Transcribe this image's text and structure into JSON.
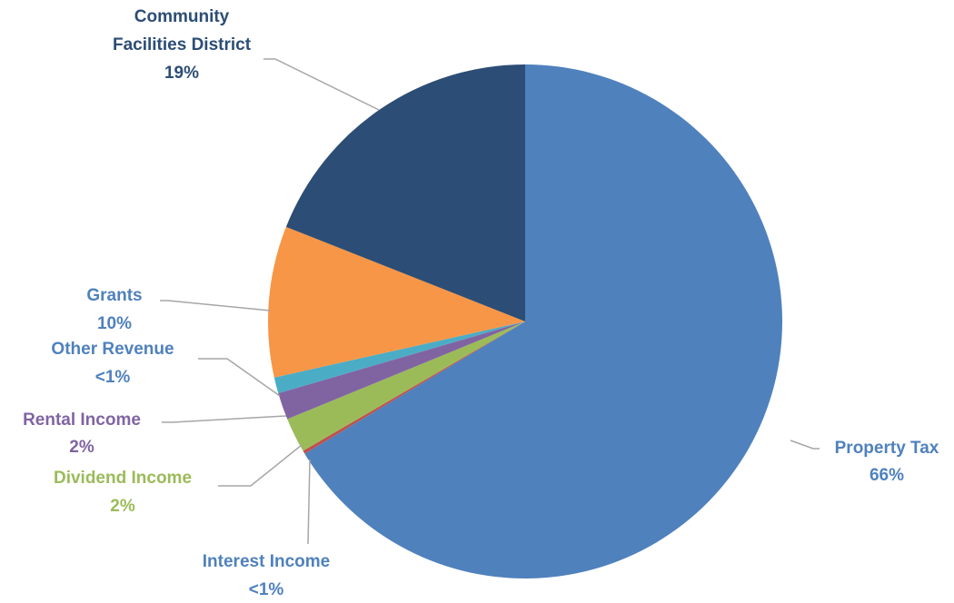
{
  "chart_data": {
    "type": "pie",
    "title": "",
    "start_angle_deg": 0,
    "direction": "clockwise",
    "slices": [
      {
        "label": "Property Tax",
        "display": "66%",
        "value": 66.4,
        "color": "#4f81bd",
        "label_color": "#4f81bd"
      },
      {
        "label": "Interest Income",
        "display": "<1%",
        "value": 0.2,
        "color": "#c0504d",
        "label_color": "#4f81bd"
      },
      {
        "label": "Dividend Income",
        "display": "2%",
        "value": 2.2,
        "color": "#9bbb59",
        "label_color": "#9bbb59"
      },
      {
        "label": "Rental Income",
        "display": "2%",
        "value": 1.7,
        "color": "#8064a2",
        "label_color": "#8064a2"
      },
      {
        "label": "Other Revenue",
        "display": "<1%",
        "value": 1.0,
        "color": "#4bacc6",
        "label_color": "#4f81bd"
      },
      {
        "label": "Grants",
        "display": "10%",
        "value": 9.5,
        "color": "#f79646",
        "label_color": "#4f81bd"
      },
      {
        "label": "Community Facilities District",
        "display": "19%",
        "value": 19.0,
        "color": "#2c4d75",
        "label_color": "#2c4d75"
      }
    ]
  }
}
